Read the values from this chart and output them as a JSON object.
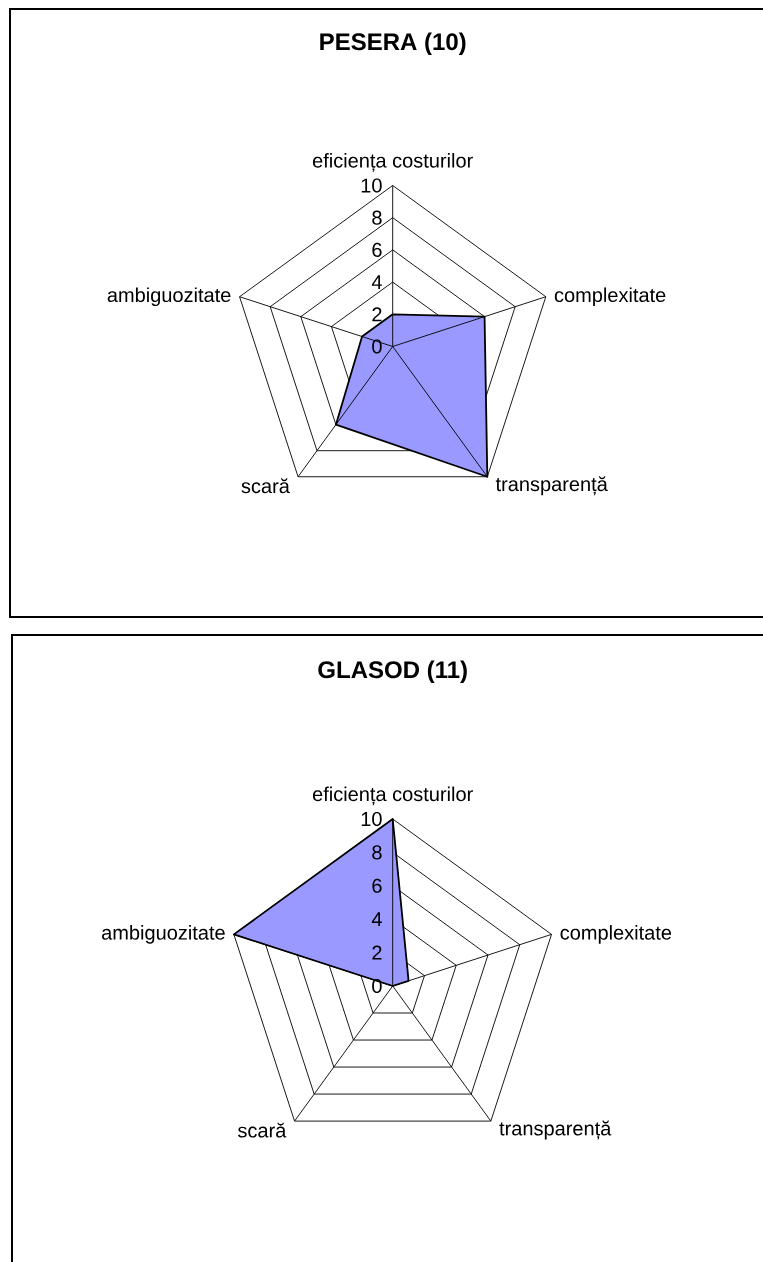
{
  "chart_data": [
    {
      "type": "radar",
      "title": "PESERA (10)",
      "categories": [
        "eficiența costurilor",
        "complexitate",
        "transparență",
        "scară",
        "ambiguozitate"
      ],
      "series": [
        {
          "color": "#9999ff",
          "values": [
            2,
            6,
            10,
            6,
            2
          ]
        }
      ],
      "ylim": [
        0,
        10
      ],
      "yticks": [
        0,
        2,
        4,
        6,
        8,
        10
      ],
      "grid": true
    },
    {
      "type": "radar",
      "title": "GLASOD (11)",
      "categories": [
        "eficiența costurilor",
        "complexitate",
        "transparență",
        "scară",
        "ambiguozitate"
      ],
      "series": [
        {
          "color": "#9999ff",
          "values": [
            10,
            1,
            0,
            0,
            10
          ]
        }
      ],
      "ylim": [
        0,
        10
      ],
      "yticks": [
        0,
        2,
        4,
        6,
        8,
        10
      ],
      "grid": true
    }
  ]
}
